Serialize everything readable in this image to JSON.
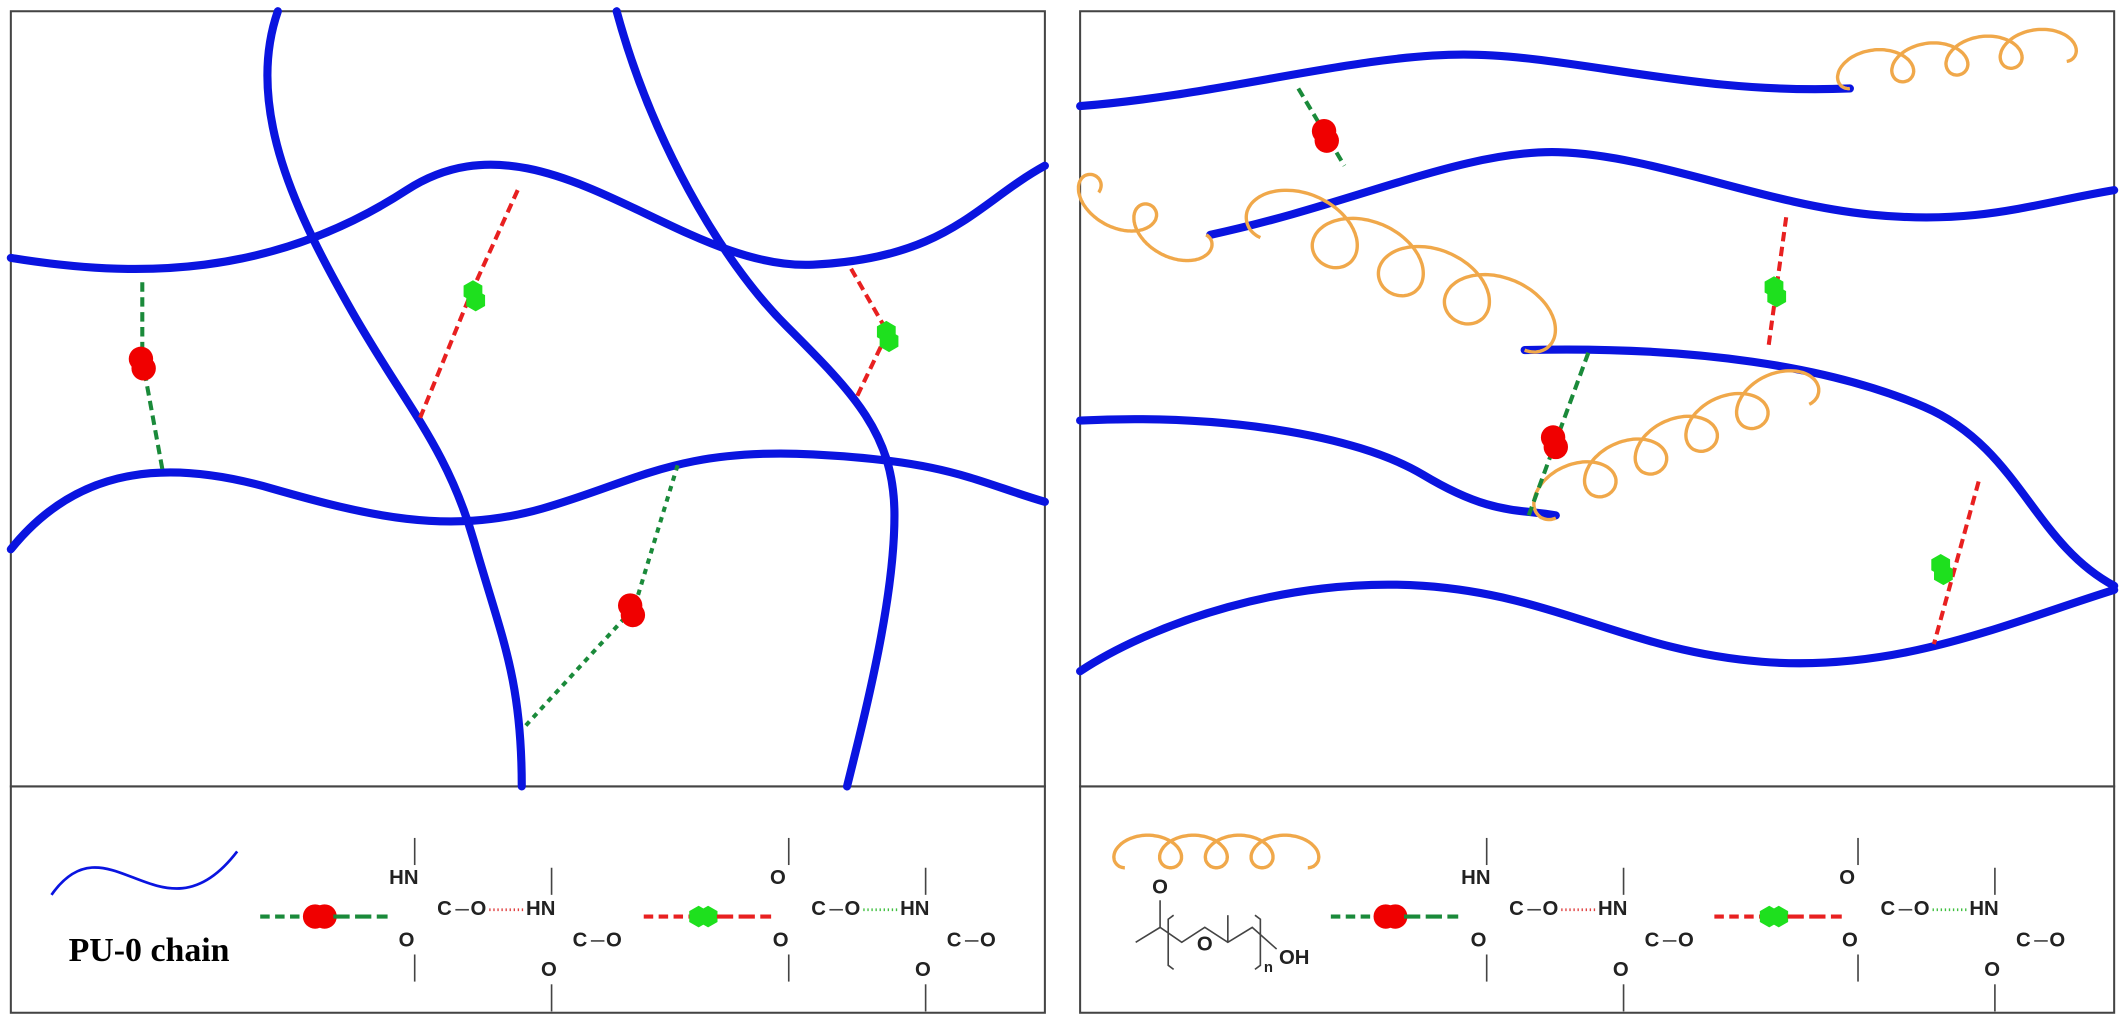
{
  "left_legend": {
    "chain_label": "PU-0 chain",
    "urethane_pair": [
      "HN",
      "C",
      "O",
      "O",
      "HN",
      "C",
      "O",
      "O"
    ],
    "carbonate_urethane_pair": [
      "O",
      "C",
      "O",
      "O",
      "HN",
      "C",
      "O",
      "O"
    ]
  },
  "right_legend": {
    "ppg_unit": [
      "O",
      "O",
      "n",
      "OH"
    ],
    "urethane_pair": [
      "HN",
      "C",
      "O",
      "O",
      "HN",
      "C",
      "O",
      "O"
    ],
    "carbonate_urethane_pair": [
      "O",
      "C",
      "O",
      "O",
      "HN",
      "C",
      "O",
      "O"
    ]
  }
}
